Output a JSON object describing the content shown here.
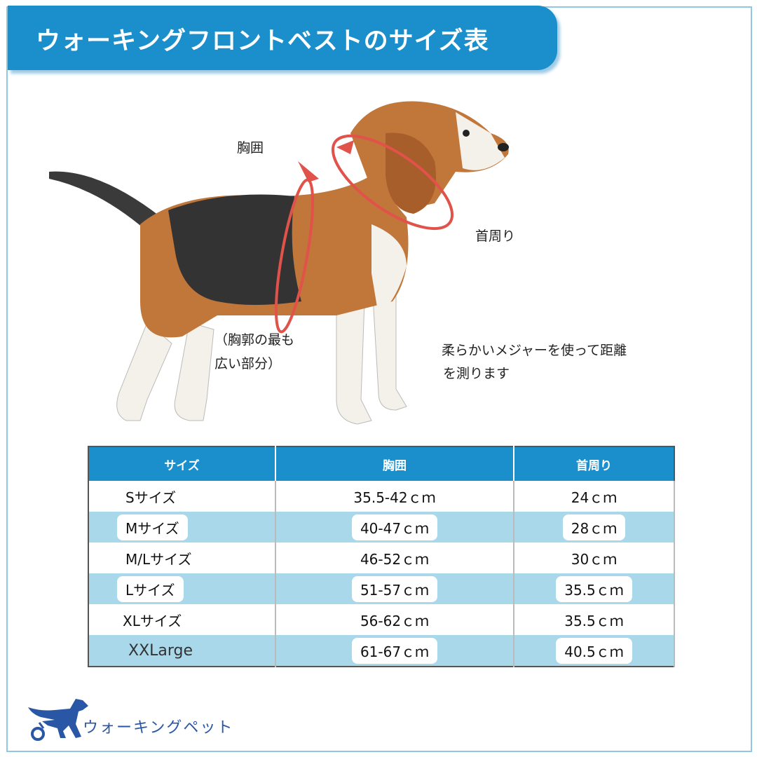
{
  "header": {
    "title": "ウォーキングフロントベストのサイズ表"
  },
  "diagram": {
    "chest_label": "胸囲",
    "neck_label": "首周り",
    "chest_note_line1": "（胸郭の最も",
    "chest_note_line2": "広い部分）",
    "tip_line1": "柔らかいメジャーを使って距離",
    "tip_line2": "を測ります"
  },
  "table": {
    "headers": [
      "サイズ",
      "胸囲",
      "首周り"
    ],
    "rows": [
      {
        "size": "Sサイズ",
        "chest": "35.5-42ｃｍ",
        "neck": "24ｃｍ"
      },
      {
        "size": "Mサイズ",
        "chest": "40-47ｃｍ",
        "neck": "28ｃｍ"
      },
      {
        "size": "M/Lサイズ",
        "chest": "46-52ｃｍ",
        "neck": "30ｃｍ"
      },
      {
        "size": "Lサイズ",
        "chest": "51-57ｃｍ",
        "neck": "35.5ｃｍ"
      },
      {
        "size": "XLサイズ",
        "chest": "56-62ｃｍ",
        "neck": "35.5ｃｍ"
      },
      {
        "size": "XXLarge",
        "chest": "61-67ｃｍ",
        "neck": "40.5ｃｍ"
      }
    ]
  },
  "brand": {
    "name": "ウォーキングペット",
    "logo_icon": "dog-wheelchair-icon"
  },
  "colors": {
    "accent": "#1a8fcc",
    "row_alt": "#a8d8ea",
    "brand": "#2a56a6",
    "measure": "#e0524a"
  }
}
